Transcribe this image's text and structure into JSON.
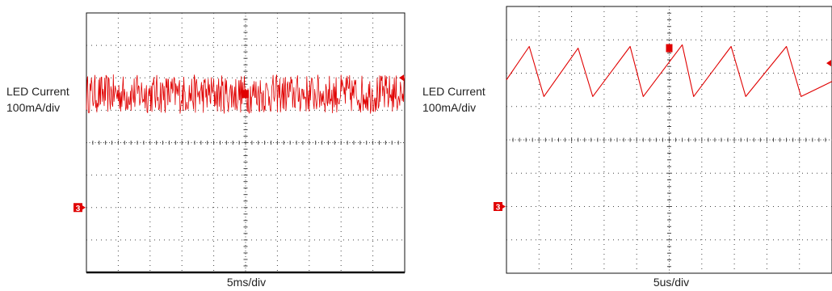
{
  "colors": {
    "trace": "#e00000",
    "grid": "#444444",
    "frame": "#111111",
    "background": "#ffffff"
  },
  "chart_data": [
    {
      "type": "line",
      "title": "",
      "ylabel": "LED Current",
      "ylabel_scale": "100mA/div",
      "xlabel": "5ms/div",
      "channel_marker": "3",
      "divisions": {
        "x": 10,
        "y": 8
      },
      "ylim": [
        -4,
        4
      ],
      "xlim": [
        0,
        10
      ],
      "grid": true,
      "waveform": "noise",
      "series": [
        {
          "center_div": 1.5,
          "ripple_pp_div": 1.2,
          "x": [
            0,
            10
          ],
          "y": [
            1.5,
            1.5
          ]
        }
      ]
    },
    {
      "type": "line",
      "title": "",
      "ylabel": "LED Current",
      "ylabel_scale": "100mA/div",
      "xlabel": "5us/div",
      "channel_marker": "3",
      "divisions": {
        "x": 10,
        "y": 8
      },
      "ylim": [
        -4,
        4
      ],
      "xlim": [
        0,
        10
      ],
      "grid": true,
      "waveform": "sawtooth",
      "series": [
        {
          "x": [
            0,
            0.7,
            1.15,
            2.2,
            2.65,
            3.8,
            4.2,
            5.4,
            5.75,
            6.9,
            7.35,
            8.6,
            9.05,
            10
          ],
          "y": [
            1.8,
            2.8,
            1.3,
            2.75,
            1.3,
            2.8,
            1.3,
            2.85,
            1.3,
            2.8,
            1.3,
            2.8,
            1.3,
            1.75
          ]
        }
      ]
    }
  ]
}
